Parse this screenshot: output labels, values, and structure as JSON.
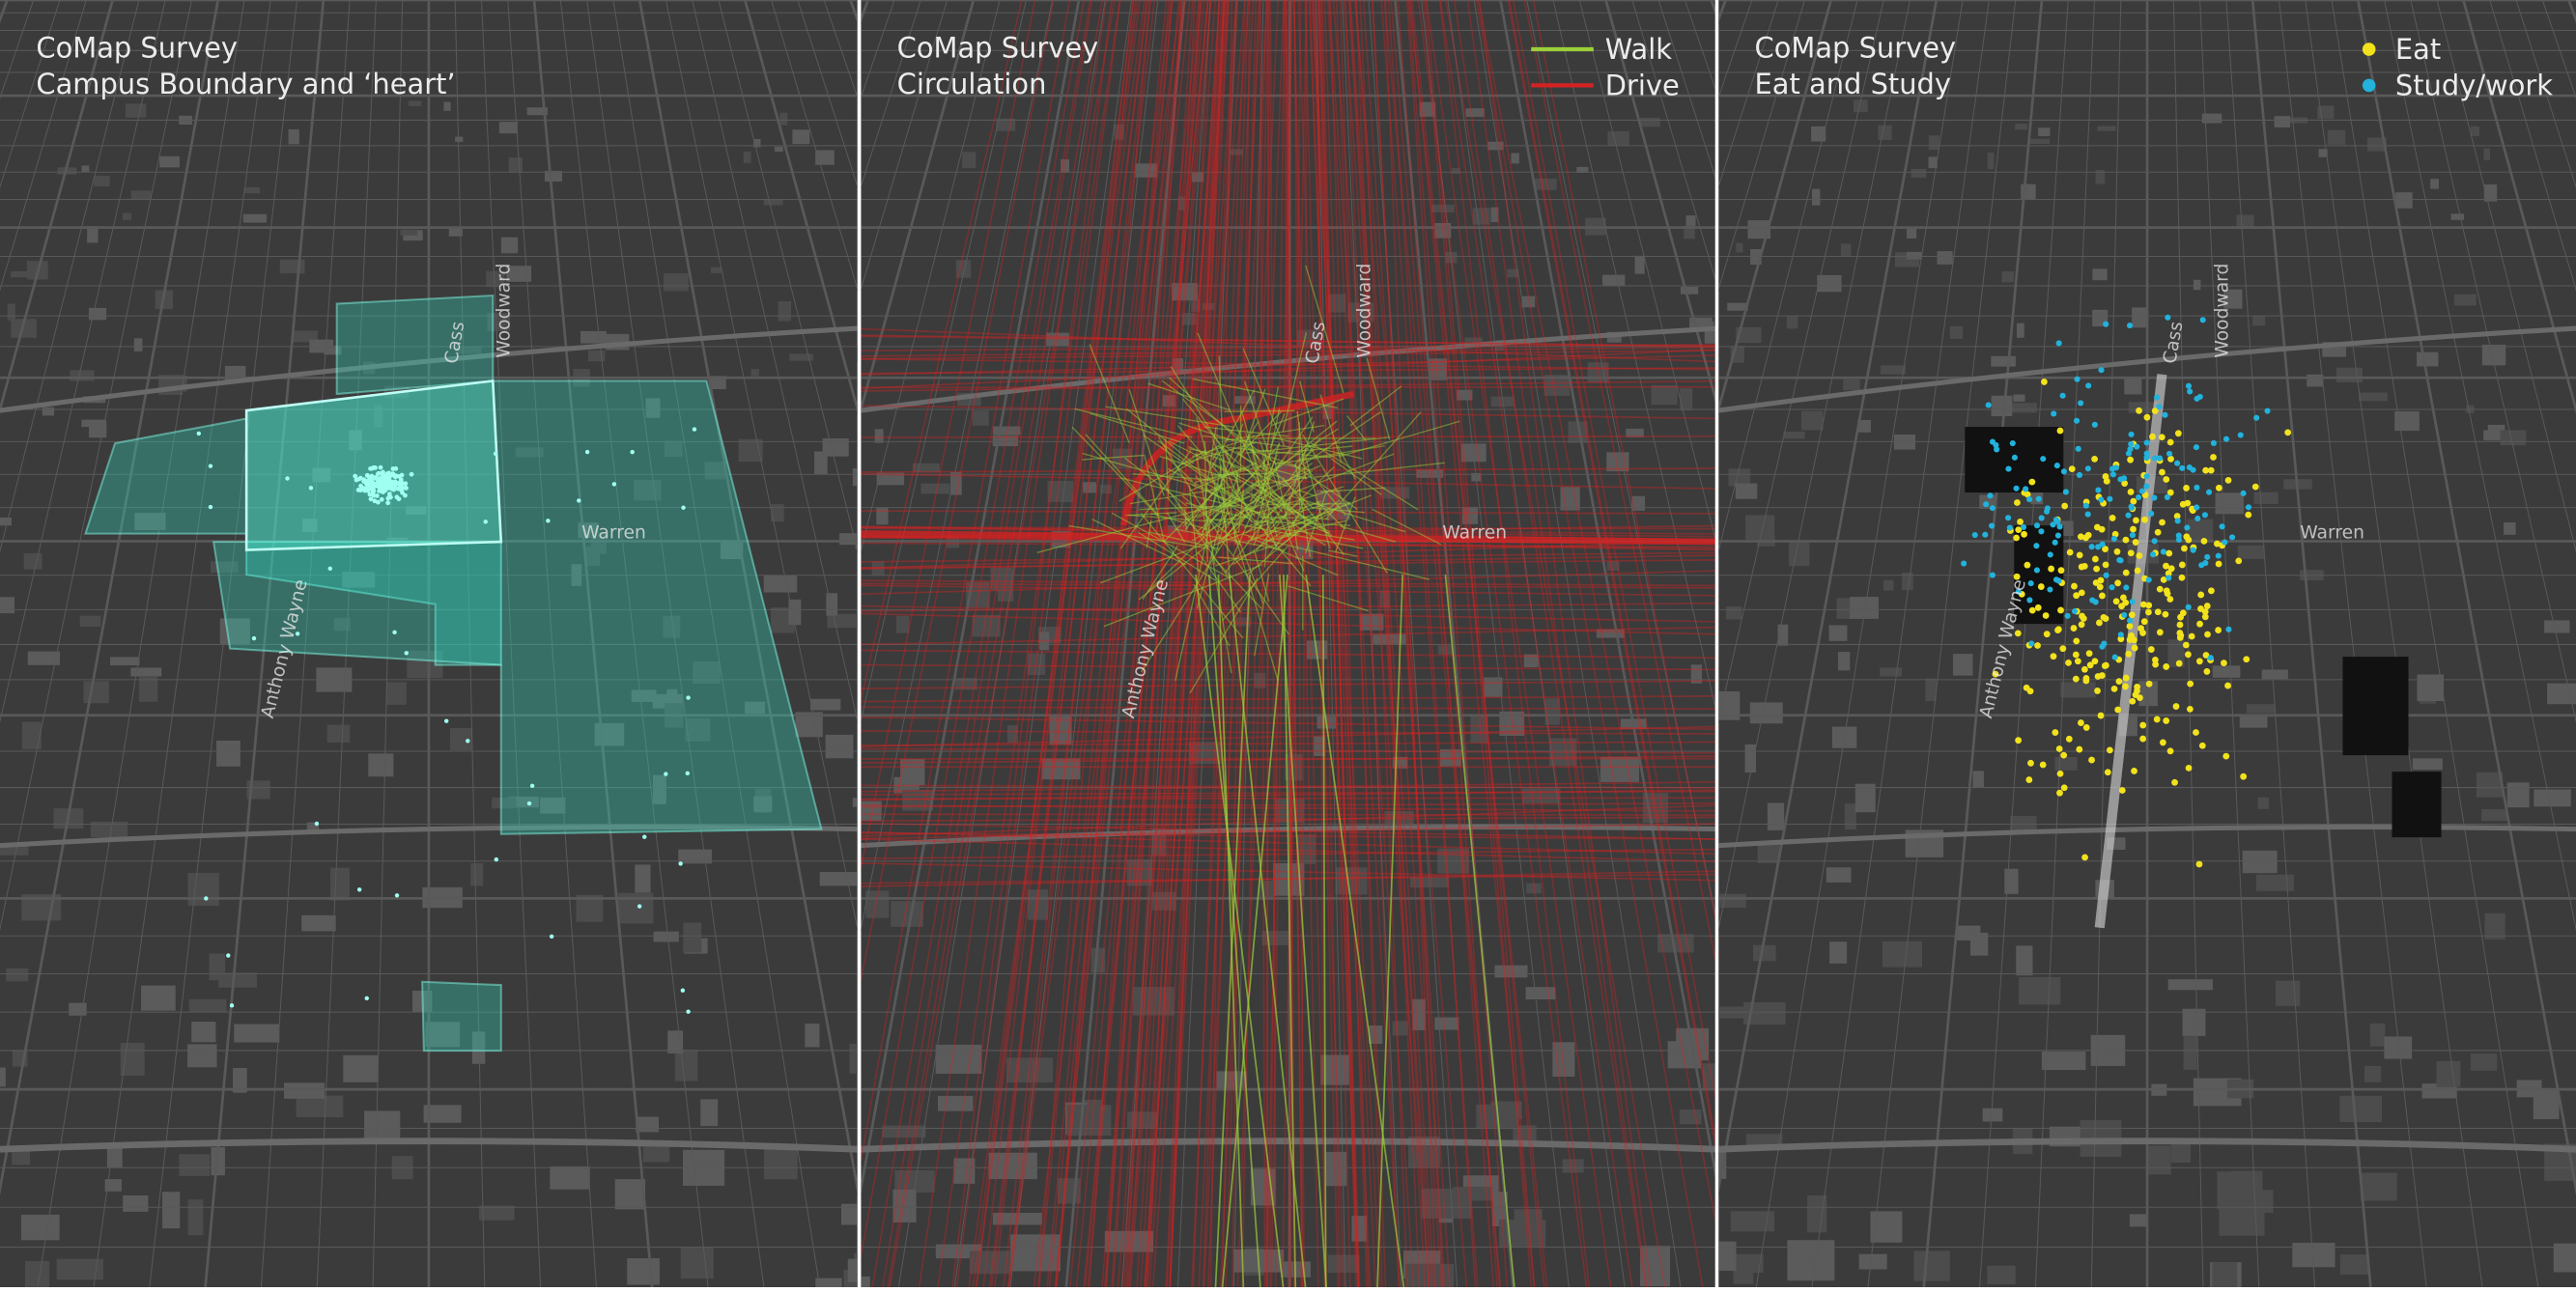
{
  "panels": [
    {
      "title": "CoMap Survey",
      "subtitle": "Campus Boundary and ‘heart’",
      "streets": {
        "cass": "Cass",
        "woodward": "Woodward",
        "warren": "Warren",
        "anthony_wayne": "Anthony Wayne"
      }
    },
    {
      "title": "CoMap Survey",
      "subtitle": "Circulation",
      "streets": {
        "cass": "Cass",
        "woodward": "Woodward",
        "warren": "Warren",
        "anthony_wayne": "Anthony Wayne"
      },
      "legend": [
        {
          "label": "Walk",
          "color": "#9ccf3a"
        },
        {
          "label": "Drive",
          "color": "#d42222"
        }
      ]
    },
    {
      "title": "CoMap Survey",
      "subtitle": "Eat and Study",
      "streets": {
        "cass": "Cass",
        "woodward": "Woodward",
        "warren": "Warren",
        "anthony_wayne": "Anthony Wayne"
      },
      "legend": [
        {
          "label": "Eat",
          "color": "#f2e21c"
        },
        {
          "label": "Study/work",
          "color": "#22b2dc"
        }
      ]
    }
  ]
}
